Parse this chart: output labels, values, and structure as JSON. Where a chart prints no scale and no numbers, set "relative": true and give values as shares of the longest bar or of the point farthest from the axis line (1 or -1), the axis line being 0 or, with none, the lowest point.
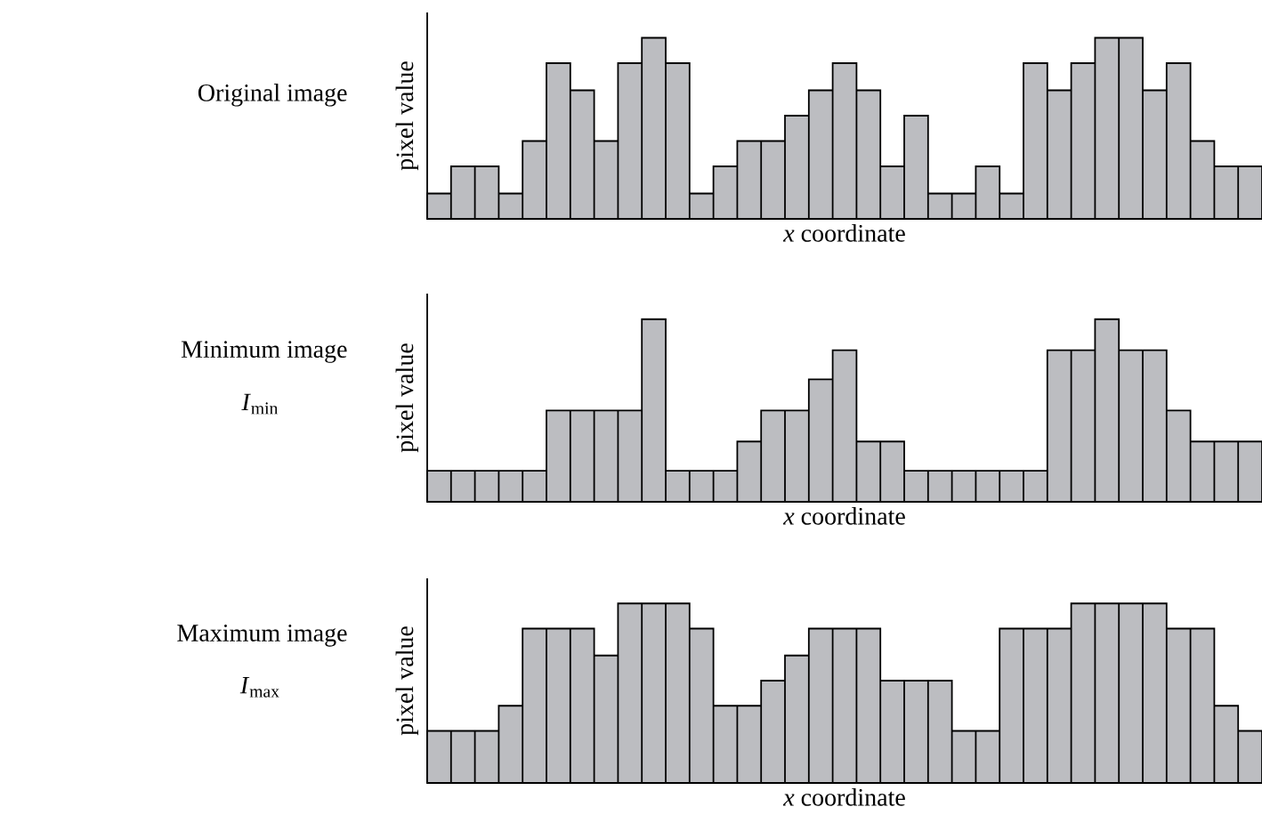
{
  "chart_data": [
    {
      "type": "bar",
      "title": "Original image",
      "xlabel": "*x* coordinate",
      "ylabel": "pixel value",
      "relative": true,
      "color": "#bcbdc1",
      "categories": [
        null,
        null,
        null,
        null,
        null,
        null,
        null,
        null,
        null,
        null,
        null,
        null,
        null,
        null,
        null,
        null,
        null,
        null,
        null,
        null,
        null,
        null,
        null,
        null,
        null,
        null,
        null,
        null,
        null,
        null,
        null,
        null,
        null,
        null,
        null
      ],
      "values": [
        0.14,
        0.29,
        0.29,
        0.14,
        0.43,
        0.86,
        0.71,
        0.43,
        0.86,
        1,
        0.86,
        0.14,
        0.29,
        0.43,
        0.43,
        0.57,
        0.71,
        0.86,
        0.71,
        0.29,
        0.57,
        0.14,
        0.14,
        0.29,
        0.14,
        0.86,
        0.71,
        0.86,
        1,
        1,
        0.71,
        0.86,
        0.43,
        0.29,
        0.29
      ]
    },
    {
      "type": "bar",
      "title": "Minimum image",
      "subtitle": "*I*$_{min}$",
      "xlabel": "*x* coordinate",
      "ylabel": "pixel value",
      "relative": true,
      "color": "#bcbdc1",
      "categories": [
        null,
        null,
        null,
        null,
        null,
        null,
        null,
        null,
        null,
        null,
        null,
        null,
        null,
        null,
        null,
        null,
        null,
        null,
        null,
        null,
        null,
        null,
        null,
        null,
        null,
        null,
        null,
        null,
        null,
        null,
        null,
        null,
        null,
        null,
        null
      ],
      "values": [
        0.17,
        0.17,
        0.17,
        0.17,
        0.17,
        0.5,
        0.5,
        0.5,
        0.5,
        1,
        0.17,
        0.17,
        0.17,
        0.33,
        0.5,
        0.5,
        0.67,
        0.83,
        0.33,
        0.33,
        0.17,
        0.17,
        0.17,
        0.17,
        0.17,
        0.17,
        0.83,
        0.83,
        1,
        0.83,
        0.83,
        0.5,
        0.33,
        0.33,
        0.33
      ]
    },
    {
      "type": "bar",
      "title": "Maximum image",
      "subtitle": "*I*$_{max}$",
      "xlabel": "*x* coordinate",
      "ylabel": "pixel value",
      "relative": true,
      "color": "#bcbdc1",
      "categories": [
        null,
        null,
        null,
        null,
        null,
        null,
        null,
        null,
        null,
        null,
        null,
        null,
        null,
        null,
        null,
        null,
        null,
        null,
        null,
        null,
        null,
        null,
        null,
        null,
        null,
        null,
        null,
        null,
        null,
        null,
        null,
        null,
        null,
        null,
        null
      ],
      "values": [
        0.29,
        0.29,
        0.29,
        0.43,
        0.86,
        0.86,
        0.86,
        0.71,
        1,
        1,
        1,
        0.86,
        0.43,
        0.43,
        0.57,
        0.71,
        0.86,
        0.86,
        0.86,
        0.57,
        0.57,
        0.57,
        0.29,
        0.29,
        0.86,
        0.86,
        0.86,
        1,
        1,
        1,
        1,
        0.86,
        0.86,
        0.43,
        0.29
      ]
    }
  ]
}
